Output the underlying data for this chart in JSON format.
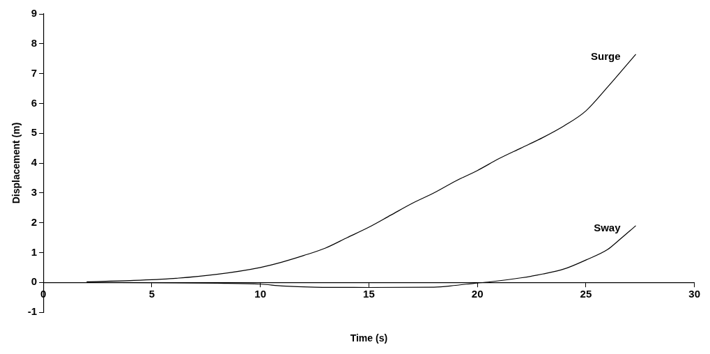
{
  "chart_data": {
    "type": "line",
    "xlabel": "Time (s)",
    "ylabel": "Displacement (m)",
    "xlim": [
      0,
      30
    ],
    "xticks": [
      0,
      5,
      10,
      15,
      20,
      25,
      30
    ],
    "ylim": [
      -1,
      9
    ],
    "yticks": [
      -1,
      0,
      1,
      2,
      3,
      4,
      5,
      6,
      7,
      8,
      9
    ],
    "grid": false,
    "legend": false,
    "marker": "none",
    "line_style": "solid",
    "series": [
      {
        "name": "Surge",
        "color": "#000000",
        "x": [
          2,
          4,
          6,
          8,
          10,
          11,
          12,
          13,
          14,
          15,
          16,
          17,
          18,
          19,
          20,
          21,
          22,
          23,
          24,
          25,
          26,
          27.3
        ],
        "values": [
          0.02,
          0.06,
          0.13,
          0.27,
          0.5,
          0.68,
          0.9,
          1.15,
          1.5,
          1.85,
          2.25,
          2.65,
          3.0,
          3.4,
          3.75,
          4.15,
          4.5,
          4.85,
          5.25,
          5.75,
          6.55,
          7.65
        ]
      },
      {
        "name": "Sway",
        "color": "#000000",
        "x": [
          2,
          5,
          8,
          10,
          11,
          12.5,
          15,
          18,
          19,
          20,
          20.5,
          22,
          23,
          24,
          25,
          26,
          26.5,
          27.3
        ],
        "values": [
          0,
          -0.01,
          -0.03,
          -0.06,
          -0.12,
          -0.16,
          -0.17,
          -0.16,
          -0.1,
          -0.02,
          0.01,
          0.15,
          0.28,
          0.45,
          0.75,
          1.1,
          1.4,
          1.9
        ]
      }
    ]
  }
}
